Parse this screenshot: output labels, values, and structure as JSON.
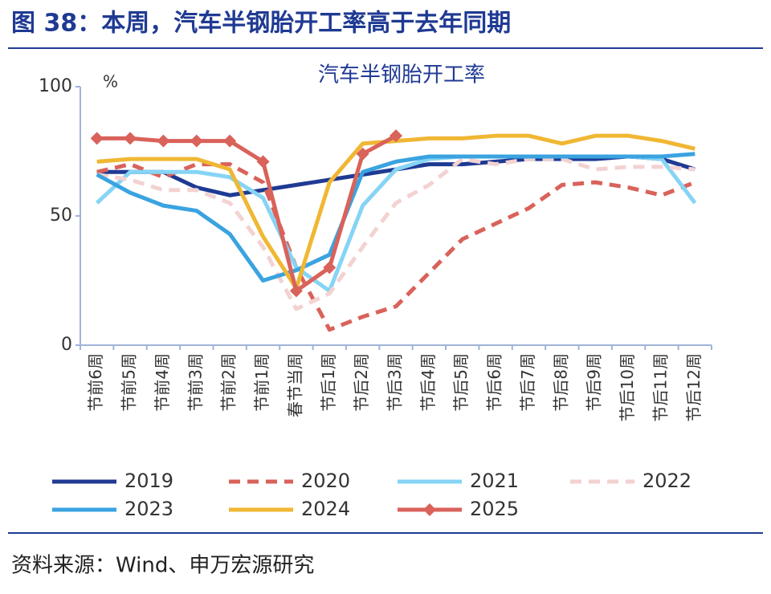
{
  "header": {
    "title": "图 38：本周，汽车半钢胎开工率高于去年同期"
  },
  "chart_data": {
    "type": "line",
    "title": "汽车半钢胎开工率",
    "y_unit": "%",
    "categories": [
      "节前6周",
      "节前5周",
      "节前4周",
      "节前3周",
      "节前2周",
      "节前1周",
      "春节当周",
      "节后1周",
      "节后2周",
      "节后3周",
      "节后4周",
      "节后5周",
      "节后6周",
      "节后7周",
      "节后8周",
      "节后9周",
      "节后10周",
      "节后11周",
      "节后12周"
    ],
    "ylim": [
      0,
      100
    ],
    "yticks": [
      0,
      50,
      100
    ],
    "grid": false,
    "series": [
      {
        "name": "2019",
        "color": "#1f3a93",
        "style": "solid",
        "values": [
          67,
          67,
          67,
          61,
          58,
          60,
          62,
          64,
          66,
          68,
          70,
          70,
          71,
          72,
          72,
          72,
          73,
          72,
          68
        ]
      },
      {
        "name": "2020",
        "color": "#d9625a",
        "style": "dashed",
        "values": [
          67,
          70,
          65,
          70,
          70,
          63,
          30,
          6,
          11,
          15,
          28,
          41,
          47,
          53,
          62,
          63,
          61,
          58,
          63
        ]
      },
      {
        "name": "2021",
        "color": "#86d4f5",
        "style": "solid",
        "values": [
          55,
          67,
          67,
          67,
          65,
          57,
          30,
          21,
          54,
          68,
          72,
          73,
          73,
          73,
          73,
          73,
          73,
          72,
          55
        ]
      },
      {
        "name": "2022",
        "color": "#f3d2d2",
        "style": "dashed",
        "values": [
          66,
          64,
          60,
          60,
          55,
          38,
          14,
          20,
          38,
          55,
          62,
          72,
          70,
          72,
          72,
          68,
          69,
          69,
          68
        ]
      },
      {
        "name": "2023",
        "color": "#3aa3e0",
        "style": "solid",
        "values": [
          66,
          59,
          54,
          52,
          43,
          25,
          29,
          35,
          67,
          71,
          73,
          73,
          73,
          73,
          73,
          73,
          73,
          73,
          74
        ]
      },
      {
        "name": "2024",
        "color": "#f0b733",
        "style": "solid",
        "values": [
          71,
          72,
          72,
          72,
          68,
          42,
          22,
          63,
          78,
          79,
          80,
          80,
          81,
          81,
          78,
          81,
          81,
          79,
          76
        ]
      },
      {
        "name": "2025",
        "color": "#d9625a",
        "style": "solid",
        "marker": "diamond",
        "values": [
          80,
          80,
          79,
          79,
          79,
          71,
          21,
          30,
          74,
          81,
          null,
          null,
          null,
          null,
          null,
          null,
          null,
          null,
          null
        ]
      }
    ]
  },
  "footer": {
    "source": "资料来源：Wind、申万宏源研究"
  }
}
